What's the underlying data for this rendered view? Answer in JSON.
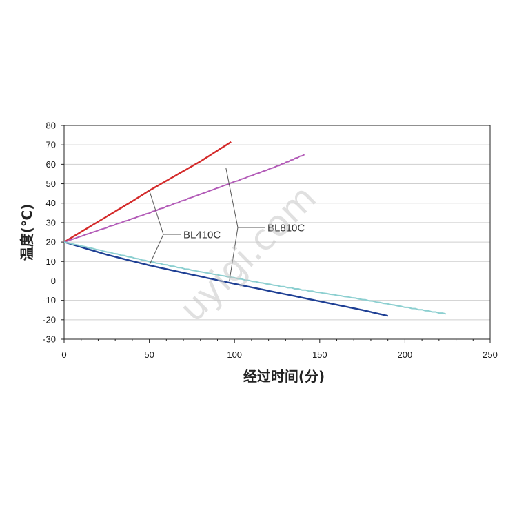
{
  "chart_data": {
    "type": "line",
    "title": "",
    "xlabel": "经过时间(分)",
    "ylabel": "温度(℃)",
    "xlim": [
      0,
      250
    ],
    "ylim": [
      -30,
      80
    ],
    "xticks": [
      0,
      50,
      100,
      150,
      200,
      250
    ],
    "yticks": [
      -30,
      -20,
      -10,
      0,
      10,
      20,
      30,
      40,
      50,
      60,
      70,
      80
    ],
    "grid": "horizontal",
    "legend": "none",
    "series": [
      {
        "color": "#d42a2a",
        "x": [
          0,
          20,
          40,
          50,
          60,
          80,
          98
        ],
        "y": [
          20,
          30.5,
          41,
          46.5,
          51.5,
          61.5,
          71.5
        ]
      },
      {
        "color": "#b35cb8",
        "x": [
          0,
          25,
          50,
          75,
          100,
          125,
          141
        ],
        "y": [
          20,
          27.5,
          35,
          43,
          51,
          59,
          65
        ],
        "y_override_note": ""
      },
      {
        "color": "#1e3f94",
        "x": [
          0,
          25,
          50,
          75,
          100,
          125,
          150,
          175,
          190
        ],
        "y": [
          20,
          13.5,
          8,
          3.2,
          -1.5,
          -6,
          -10.5,
          -15,
          -18
        ]
      },
      {
        "color": "#8ccfd0",
        "x": [
          0,
          25,
          50,
          75,
          100,
          125,
          150,
          175,
          200,
          224
        ],
        "y": [
          20,
          15,
          10,
          5.5,
          1.5,
          -2.5,
          -6,
          -9.5,
          -13.5,
          -17
        ]
      }
    ],
    "annotations": [
      {
        "text": "BL410C",
        "points": [
          [
            50,
            46.5
          ],
          [
            50,
            8
          ]
        ]
      },
      {
        "text": "BL810C",
        "points": [
          [
            95,
            58
          ],
          [
            97,
            0
          ]
        ]
      }
    ]
  },
  "watermark": "uyigi.com"
}
